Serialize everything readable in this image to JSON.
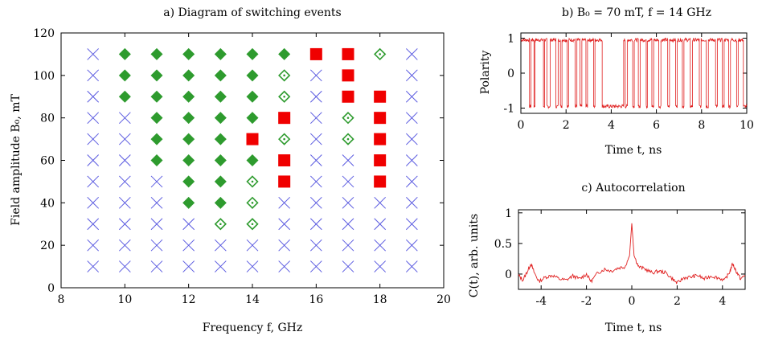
{
  "chart_data": [
    {
      "type": "scatter",
      "title": "a) Diagram of switching events",
      "xlabel": "Frequency f, GHz",
      "ylabel": "Field amplitude B₀, mT",
      "xlim": [
        8,
        20
      ],
      "ylim": [
        0,
        120
      ],
      "xticks": [
        "8",
        "10",
        "12",
        "14",
        "16",
        "18",
        "20"
      ],
      "yticks": [
        "0",
        "20",
        "40",
        "60",
        "80",
        "100",
        "120"
      ],
      "grid": false,
      "legend": "none",
      "colors": {
        "cross": "#5a5ae0",
        "diamond": "#2e9b2e",
        "square": "#f00000"
      },
      "series": [
        {
          "marker": "cross",
          "points": [
            [
              9,
              10
            ],
            [
              9,
              20
            ],
            [
              9,
              30
            ],
            [
              9,
              40
            ],
            [
              9,
              50
            ],
            [
              9,
              60
            ],
            [
              9,
              70
            ],
            [
              9,
              80
            ],
            [
              9,
              90
            ],
            [
              9,
              100
            ],
            [
              9,
              110
            ],
            [
              10,
              10
            ],
            [
              10,
              20
            ],
            [
              10,
              30
            ],
            [
              10,
              40
            ],
            [
              10,
              50
            ],
            [
              10,
              60
            ],
            [
              10,
              70
            ],
            [
              10,
              80
            ],
            [
              11,
              10
            ],
            [
              11,
              20
            ],
            [
              11,
              30
            ],
            [
              11,
              40
            ],
            [
              11,
              50
            ],
            [
              12,
              10
            ],
            [
              12,
              20
            ],
            [
              12,
              30
            ],
            [
              13,
              10
            ],
            [
              13,
              20
            ],
            [
              14,
              10
            ],
            [
              14,
              20
            ],
            [
              15,
              10
            ],
            [
              15,
              20
            ],
            [
              15,
              30
            ],
            [
              15,
              40
            ],
            [
              16,
              10
            ],
            [
              16,
              20
            ],
            [
              16,
              30
            ],
            [
              16,
              40
            ],
            [
              16,
              50
            ],
            [
              16,
              60
            ],
            [
              16,
              70
            ],
            [
              16,
              80
            ],
            [
              16,
              90
            ],
            [
              16,
              100
            ],
            [
              17,
              10
            ],
            [
              17,
              20
            ],
            [
              17,
              30
            ],
            [
              17,
              40
            ],
            [
              17,
              50
            ],
            [
              17,
              60
            ],
            [
              18,
              10
            ],
            [
              18,
              20
            ],
            [
              18,
              30
            ],
            [
              18,
              40
            ],
            [
              19,
              10
            ],
            [
              19,
              20
            ],
            [
              19,
              30
            ],
            [
              19,
              40
            ],
            [
              19,
              50
            ],
            [
              19,
              60
            ],
            [
              19,
              70
            ],
            [
              19,
              80
            ],
            [
              19,
              90
            ],
            [
              19,
              100
            ],
            [
              19,
              110
            ]
          ]
        },
        {
          "marker": "filled-diamond",
          "points": [
            [
              10,
              90
            ],
            [
              10,
              100
            ],
            [
              10,
              110
            ],
            [
              11,
              60
            ],
            [
              11,
              70
            ],
            [
              11,
              80
            ],
            [
              11,
              90
            ],
            [
              11,
              100
            ],
            [
              11,
              110
            ],
            [
              12,
              40
            ],
            [
              12,
              50
            ],
            [
              12,
              60
            ],
            [
              12,
              70
            ],
            [
              12,
              80
            ],
            [
              12,
              90
            ],
            [
              12,
              100
            ],
            [
              12,
              110
            ],
            [
              13,
              40
            ],
            [
              13,
              50
            ],
            [
              13,
              60
            ],
            [
              13,
              70
            ],
            [
              13,
              80
            ],
            [
              13,
              90
            ],
            [
              13,
              100
            ],
            [
              13,
              110
            ],
            [
              14,
              60
            ],
            [
              14,
              80
            ],
            [
              14,
              90
            ],
            [
              14,
              100
            ],
            [
              14,
              110
            ],
            [
              15,
              110
            ]
          ]
        },
        {
          "marker": "open-diamond",
          "points": [
            [
              13,
              30
            ],
            [
              14,
              30
            ],
            [
              14,
              40
            ],
            [
              14,
              50
            ],
            [
              15,
              70
            ],
            [
              15,
              90
            ],
            [
              15,
              100
            ],
            [
              17,
              70
            ],
            [
              17,
              80
            ],
            [
              18,
              110
            ]
          ]
        },
        {
          "marker": "square",
          "points": [
            [
              14,
              70
            ],
            [
              15,
              50
            ],
            [
              15,
              60
            ],
            [
              15,
              80
            ],
            [
              16,
              110
            ],
            [
              17,
              90
            ],
            [
              17,
              100
            ],
            [
              17,
              110
            ],
            [
              18,
              50
            ],
            [
              18,
              60
            ],
            [
              18,
              70
            ],
            [
              18,
              80
            ],
            [
              18,
              90
            ]
          ]
        }
      ]
    },
    {
      "type": "line",
      "title": "b) B₀ = 70 mT, f = 14 GHz",
      "xlabel": "Time t, ns",
      "ylabel": "Polarity",
      "xlim": [
        0,
        10
      ],
      "ylim": [
        -1.15,
        1.15
      ],
      "xticks": [
        "0",
        "2",
        "4",
        "6",
        "8",
        "10"
      ],
      "yticks": [
        "-1",
        "0",
        "1"
      ],
      "color": "#e02020",
      "states": [
        [
          0.0,
          1
        ],
        [
          0.38,
          -1
        ],
        [
          0.45,
          1
        ],
        [
          0.58,
          -1
        ],
        [
          0.62,
          1
        ],
        [
          0.72,
          1
        ],
        [
          1.0,
          -1
        ],
        [
          1.05,
          1
        ],
        [
          1.15,
          -1
        ],
        [
          1.3,
          1
        ],
        [
          1.55,
          -1
        ],
        [
          1.65,
          1
        ],
        [
          1.75,
          -1
        ],
        [
          1.82,
          1
        ],
        [
          2.05,
          -1
        ],
        [
          2.12,
          1
        ],
        [
          2.4,
          -1
        ],
        [
          2.48,
          1
        ],
        [
          2.62,
          -1
        ],
        [
          2.7,
          1
        ],
        [
          2.88,
          -1
        ],
        [
          2.95,
          1
        ],
        [
          3.22,
          -1
        ],
        [
          3.28,
          1
        ],
        [
          3.6,
          -1
        ],
        [
          4.55,
          1
        ],
        [
          4.62,
          -1
        ],
        [
          4.72,
          1
        ],
        [
          4.95,
          -1
        ],
        [
          5.02,
          1
        ],
        [
          5.2,
          -1
        ],
        [
          5.28,
          1
        ],
        [
          5.55,
          -1
        ],
        [
          5.6,
          1
        ],
        [
          5.8,
          -1
        ],
        [
          5.88,
          1
        ],
        [
          6.1,
          -1
        ],
        [
          6.2,
          1
        ],
        [
          6.5,
          -1
        ],
        [
          6.58,
          1
        ],
        [
          6.85,
          -1
        ],
        [
          6.92,
          1
        ],
        [
          7.15,
          -1
        ],
        [
          7.22,
          1
        ],
        [
          7.5,
          -1
        ],
        [
          7.6,
          1
        ],
        [
          7.9,
          -1
        ],
        [
          7.98,
          1
        ],
        [
          8.2,
          -1
        ],
        [
          8.3,
          1
        ],
        [
          8.62,
          -1
        ],
        [
          8.7,
          1
        ],
        [
          8.92,
          -1
        ],
        [
          9.0,
          1
        ],
        [
          9.2,
          -1
        ],
        [
          9.28,
          1
        ],
        [
          9.55,
          -1
        ],
        [
          9.62,
          1
        ],
        [
          9.85,
          -1
        ],
        [
          10.0,
          -1
        ]
      ]
    },
    {
      "type": "line",
      "title": "c) Autocorrelation",
      "xlabel": "Time t, ns",
      "ylabel": "C(t), arb. units",
      "xlim": [
        -5,
        5
      ],
      "ylim": [
        -0.25,
        1.05
      ],
      "xticks": [
        "-4",
        "-2",
        "0",
        "2",
        "4"
      ],
      "yticks": [
        "0",
        "0.5",
        "1"
      ],
      "color": "#e02020",
      "points": [
        [
          -5.0,
          -0.02
        ],
        [
          -4.8,
          -0.1
        ],
        [
          -4.6,
          0.05
        ],
        [
          -4.45,
          0.17
        ],
        [
          -4.3,
          0.02
        ],
        [
          -4.1,
          -0.12
        ],
        [
          -3.8,
          -0.05
        ],
        [
          -3.5,
          -0.02
        ],
        [
          -3.2,
          -0.08
        ],
        [
          -2.9,
          -0.1
        ],
        [
          -2.6,
          -0.03
        ],
        [
          -2.3,
          -0.08
        ],
        [
          -2.0,
          0.0
        ],
        [
          -1.8,
          -0.12
        ],
        [
          -1.5,
          0.02
        ],
        [
          -1.2,
          0.08
        ],
        [
          -0.9,
          0.05
        ],
        [
          -0.6,
          0.1
        ],
        [
          -0.3,
          0.12
        ],
        [
          -0.1,
          0.3
        ],
        [
          0.0,
          0.83
        ],
        [
          0.1,
          0.3
        ],
        [
          0.3,
          0.12
        ],
        [
          0.6,
          0.08
        ],
        [
          0.9,
          0.02
        ],
        [
          1.2,
          0.05
        ],
        [
          1.5,
          0.02
        ],
        [
          1.8,
          -0.08
        ],
        [
          2.0,
          -0.15
        ],
        [
          2.3,
          -0.06
        ],
        [
          2.6,
          -0.05
        ],
        [
          2.9,
          -0.02
        ],
        [
          3.2,
          -0.08
        ],
        [
          3.5,
          -0.03
        ],
        [
          3.8,
          -0.06
        ],
        [
          4.1,
          -0.1
        ],
        [
          4.3,
          0.02
        ],
        [
          4.45,
          0.17
        ],
        [
          4.6,
          0.05
        ],
        [
          4.8,
          -0.08
        ],
        [
          5.0,
          -0.02
        ]
      ]
    }
  ]
}
